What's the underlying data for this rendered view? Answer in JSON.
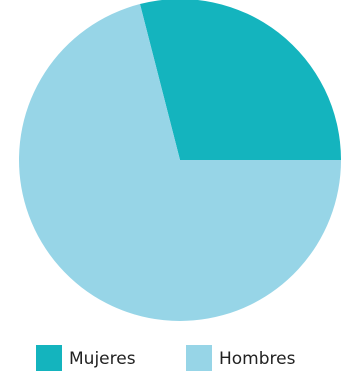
{
  "chart_data": {
    "type": "pie",
    "categories": [
      "Mujeres",
      "Hombres"
    ],
    "values": [
      29,
      71
    ],
    "colors": [
      "#14b4be",
      "#97d5e7"
    ],
    "legend": "bottom"
  }
}
